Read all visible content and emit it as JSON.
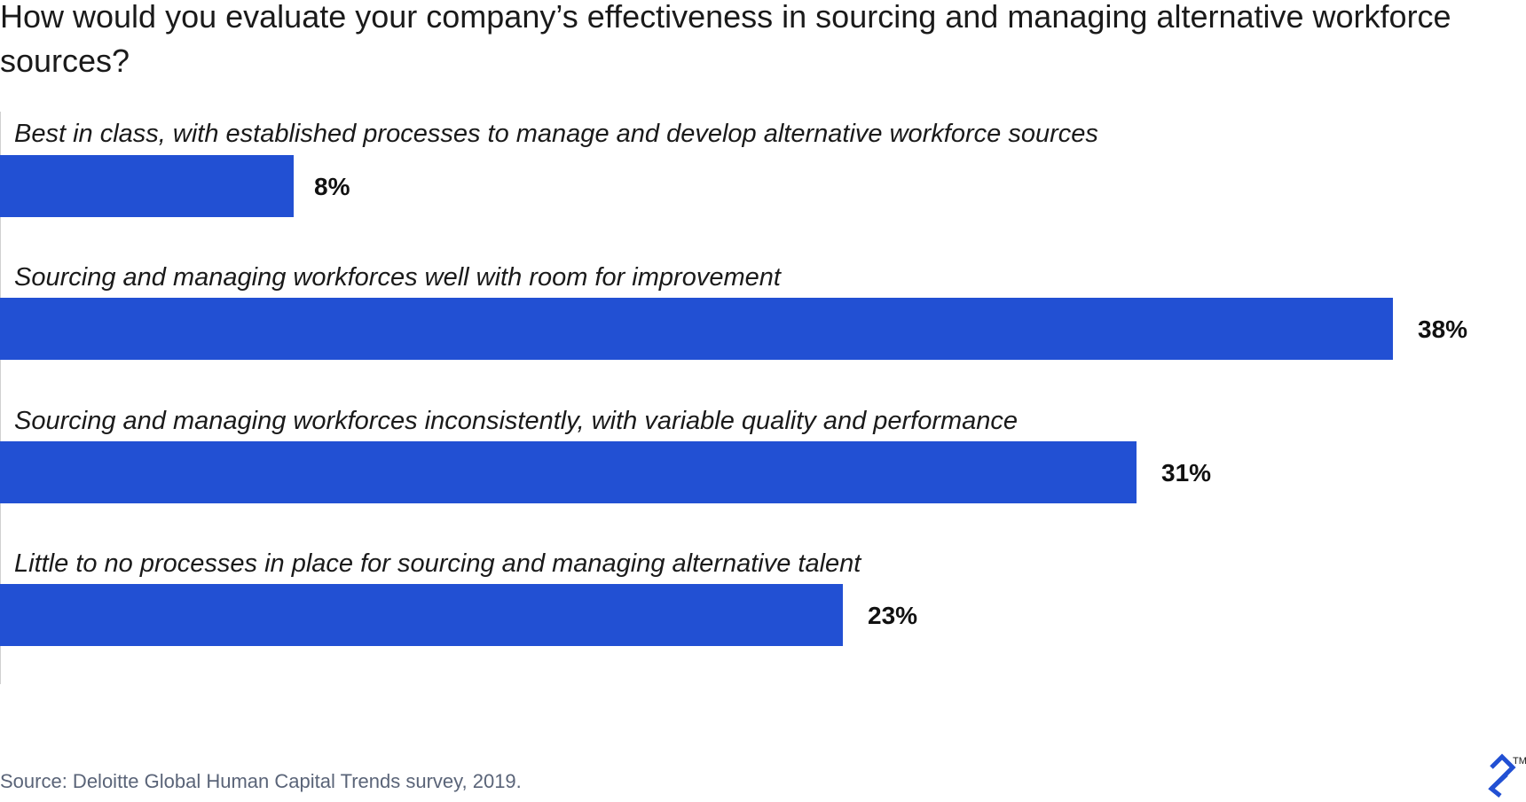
{
  "title": "How would you evaluate your company’s effectiveness in sourcing and managing alternative workforce sources?",
  "source": "Source: Deloitte Global Human Capital Trends survey, 2019.",
  "logo": {
    "icon": "toptal-logo-icon",
    "mark": "TM"
  },
  "colors": {
    "bar": "#2250d3",
    "text": "#111111",
    "source": "#5a6478"
  },
  "chart_data": {
    "type": "bar",
    "orientation": "horizontal",
    "title": "How would you evaluate your company’s effectiveness in sourcing and managing alternative workforce sources?",
    "xlabel": "",
    "ylabel": "",
    "xlim": [
      0,
      40
    ],
    "grid": false,
    "categories": [
      "Best in class, with established processes to manage and develop alternative workforce sources",
      "Sourcing and managing workforces well with room for improvement",
      "Sourcing and managing workforces inconsistently, with variable quality and performance",
      "Little to no processes in place for sourcing and managing alternative talent"
    ],
    "values": [
      8,
      38,
      31,
      23
    ],
    "value_labels": [
      "8%",
      "38%",
      "31%",
      "23%"
    ]
  }
}
